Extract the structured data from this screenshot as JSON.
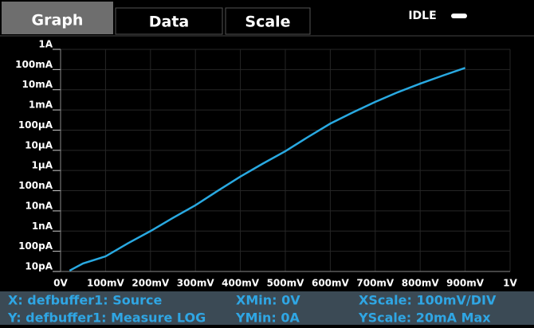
{
  "tabs": [
    "Graph",
    "Data",
    "Scale"
  ],
  "status": "IDLE",
  "footer": {
    "x_source": "X: defbuffer1: Source",
    "x_min": "XMin: 0V",
    "x_scale": "XScale: 100mV/DIV",
    "y_source": "Y: defbuffer1: Measure LOG",
    "y_min": "YMin: 0A",
    "y_scale": "YScale: 20mA Max"
  },
  "chart_data": {
    "type": "line",
    "x": [
      0.02,
      0.05,
      0.1,
      0.15,
      0.2,
      0.25,
      0.3,
      0.35,
      0.4,
      0.45,
      0.5,
      0.55,
      0.6,
      0.65,
      0.7,
      0.75,
      0.8,
      0.85,
      0.9
    ],
    "series": [
      {
        "color": "#29a9e1",
        "values": [
          1.1e-11,
          2.5e-11,
          5.6e-11,
          2.5e-10,
          1e-09,
          4.5e-09,
          1.9e-08,
          1e-07,
          5e-07,
          2.2e-06,
          9e-06,
          4.5e-05,
          0.00021,
          0.00075,
          0.0025,
          0.0075,
          0.02,
          0.05,
          0.12
        ]
      }
    ],
    "xlim": [
      0,
      1
    ],
    "xticks": [
      {
        "value": 0,
        "label": "0V"
      },
      {
        "value": 0.1,
        "label": "100mV"
      },
      {
        "value": 0.2,
        "label": "200mV"
      },
      {
        "value": 0.3,
        "label": "300mV"
      },
      {
        "value": 0.4,
        "label": "400mV"
      },
      {
        "value": 0.5,
        "label": "500mV"
      },
      {
        "value": 0.6,
        "label": "600mV"
      },
      {
        "value": 0.7,
        "label": "700mV"
      },
      {
        "value": 0.8,
        "label": "800mV"
      },
      {
        "value": 0.9,
        "label": "900mV"
      },
      {
        "value": 1,
        "label": "1V"
      }
    ],
    "ylim": [
      1e-11,
      1
    ],
    "yticks": [
      {
        "value": 1e-11,
        "label": "10pA"
      },
      {
        "value": 1e-10,
        "label": "100pA"
      },
      {
        "value": 1e-09,
        "label": "1nA"
      },
      {
        "value": 1e-08,
        "label": "10nA"
      },
      {
        "value": 1e-07,
        "label": "100nA"
      },
      {
        "value": 1e-06,
        "label": "1µA"
      },
      {
        "value": 1e-05,
        "label": "10µA"
      },
      {
        "value": 0.0001,
        "label": "100µA"
      },
      {
        "value": 0.001,
        "label": "1mA"
      },
      {
        "value": 0.01,
        "label": "10mA"
      },
      {
        "value": 0.1,
        "label": "100mA"
      },
      {
        "value": 1,
        "label": "1A"
      }
    ],
    "ylog": true,
    "grid": true
  }
}
